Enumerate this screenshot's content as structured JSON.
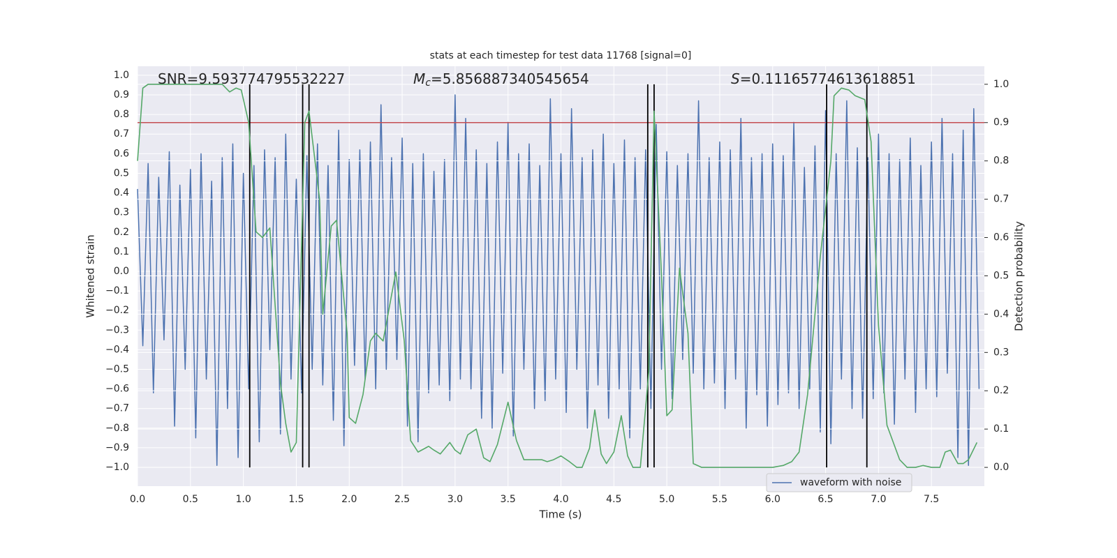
{
  "chart_data": {
    "type": "line",
    "title": "stats at each timestep for test data 11768 [signal=0]",
    "xlabel": "Time (s)",
    "ylabel": "Whitened strain",
    "y2label": "Detection probability",
    "xlim": [
      0,
      8
    ],
    "ylim": [
      -1.096,
      1.046
    ],
    "y2lim": [
      -0.049,
      1.047
    ],
    "xticks": [
      {
        "value": 0,
        "label": "0.0"
      },
      0.5,
      {
        "value": 1,
        "label": "1.0"
      },
      1.5,
      {
        "value": 2,
        "label": "2.0"
      },
      2.5,
      {
        "value": 3,
        "label": "3.0"
      },
      3.5,
      {
        "value": 4,
        "label": "4.0"
      },
      4.5,
      {
        "value": 5,
        "label": "5.0"
      },
      5.5,
      {
        "value": 6,
        "label": "6.0"
      },
      6.5,
      {
        "value": 7,
        "label": "7.0"
      },
      7.5
    ],
    "yticks": [
      {
        "value": -1,
        "label": "−1.0"
      },
      {
        "value": -0.9,
        "label": "−0.9"
      },
      {
        "value": -0.8,
        "label": "−0.8"
      },
      {
        "value": -0.7,
        "label": "−0.7"
      },
      {
        "value": -0.6,
        "label": "−0.6"
      },
      {
        "value": -0.5,
        "label": "−0.5"
      },
      {
        "value": -0.4,
        "label": "−0.4"
      },
      {
        "value": -0.3,
        "label": "−0.3"
      },
      {
        "value": -0.2,
        "label": "−0.2"
      },
      {
        "value": -0.1,
        "label": "−0.1"
      },
      {
        "value": 0,
        "label": "0.0"
      },
      0.1,
      0.2,
      0.3,
      0.4,
      0.5,
      0.6,
      0.7,
      0.8,
      0.9,
      {
        "value": 1,
        "label": "1.0"
      }
    ],
    "y2ticks": [
      {
        "value": 0,
        "label": "0.0"
      },
      0.1,
      0.2,
      0.3,
      0.4,
      0.5,
      0.6,
      0.7,
      0.8,
      0.9,
      {
        "value": 1,
        "label": "1.0"
      }
    ],
    "grid": true,
    "legend": "lower right",
    "annotations": [
      {
        "text": "SNR=9.593774795532227"
      },
      {
        "symbol": "M",
        "subscript": "c",
        "text": "=5.856887340545654"
      },
      {
        "symbol": "S",
        "text": "=0.11165774613618851"
      }
    ],
    "series": [
      {
        "name": "waveform with noise",
        "color": "#4c72b0",
        "x": [
          0,
          0.05,
          0.1,
          0.15,
          0.2,
          0.25,
          0.3,
          0.35,
          0.4,
          0.45,
          0.5,
          0.55,
          0.6,
          0.65,
          0.7,
          0.75,
          0.8,
          0.85,
          0.9,
          0.95,
          1,
          1.05,
          1.1,
          1.15,
          1.2,
          1.25,
          1.3,
          1.35,
          1.4,
          1.45,
          1.5,
          1.55,
          1.6,
          1.65,
          1.7,
          1.75,
          1.8,
          1.85,
          1.9,
          1.95,
          2,
          2.05,
          2.1,
          2.15,
          2.2,
          2.25,
          2.3,
          2.35,
          2.4,
          2.45,
          2.5,
          2.55,
          2.6,
          2.65,
          2.7,
          2.75,
          2.8,
          2.85,
          2.9,
          2.95,
          3,
          3.05,
          3.1,
          3.15,
          3.2,
          3.25,
          3.3,
          3.35,
          3.4,
          3.45,
          3.5,
          3.55,
          3.6,
          3.65,
          3.7,
          3.75,
          3.8,
          3.85,
          3.9,
          3.95,
          4,
          4.05,
          4.1,
          4.15,
          4.2,
          4.25,
          4.3,
          4.35,
          4.4,
          4.45,
          4.5,
          4.55,
          4.6,
          4.65,
          4.7,
          4.75,
          4.8,
          4.85,
          4.9,
          4.95,
          5,
          5.05,
          5.1,
          5.15,
          5.2,
          5.25,
          5.3,
          5.35,
          5.4,
          5.45,
          5.5,
          5.55,
          5.6,
          5.65,
          5.7,
          5.75,
          5.8,
          5.85,
          5.9,
          5.95,
          6,
          6.05,
          6.1,
          6.15,
          6.2,
          6.25,
          6.3,
          6.35,
          6.4,
          6.45,
          6.5,
          6.55,
          6.6,
          6.65,
          6.7,
          6.75,
          6.8,
          6.85,
          6.9,
          6.95,
          7,
          7.05,
          7.1,
          7.15,
          7.2,
          7.25,
          7.3,
          7.35,
          7.4,
          7.45,
          7.5,
          7.55,
          7.6,
          7.65,
          7.7,
          7.75,
          7.8,
          7.85,
          7.9,
          7.95
        ],
        "values": [
          0.42,
          -0.38,
          0.55,
          -0.62,
          0.48,
          -0.35,
          0.61,
          -0.79,
          0.44,
          -0.5,
          0.52,
          -0.85,
          0.6,
          -0.55,
          0.46,
          -0.99,
          0.58,
          -0.7,
          0.65,
          -0.95,
          0.5,
          -0.6,
          0.54,
          -0.87,
          0.62,
          -0.4,
          0.58,
          -0.83,
          0.7,
          -0.55,
          0.47,
          -0.62,
          0.59,
          -0.5,
          0.65,
          -0.58,
          0.54,
          -0.76,
          0.72,
          -0.89,
          0.57,
          -0.48,
          0.62,
          -0.55,
          0.66,
          -0.6,
          0.85,
          -0.5,
          0.58,
          -0.45,
          0.68,
          -0.79,
          0.55,
          -0.87,
          0.6,
          -0.62,
          0.51,
          -0.58,
          0.57,
          -0.66,
          0.9,
          -0.55,
          0.78,
          -0.6,
          0.62,
          -0.75,
          0.55,
          -0.8,
          0.66,
          -0.52,
          0.76,
          -0.84,
          0.6,
          -0.5,
          0.65,
          -0.7,
          0.54,
          -0.66,
          0.88,
          -0.55,
          0.6,
          -0.72,
          0.83,
          -0.5,
          0.58,
          -0.8,
          0.62,
          -0.58,
          0.7,
          -0.75,
          0.55,
          -0.6,
          0.67,
          -0.85,
          0.58,
          -0.6,
          0.62,
          -0.7,
          0.75,
          -0.5,
          0.61,
          -0.65,
          0.54,
          -0.45,
          0.6,
          -0.52,
          0.87,
          -0.6,
          0.58,
          -0.57,
          0.66,
          -0.7,
          0.62,
          -0.55,
          0.78,
          -0.8,
          0.58,
          -0.63,
          0.6,
          -0.79,
          0.65,
          -0.68,
          0.59,
          -0.62,
          0.76,
          -0.7,
          0.53,
          -0.6,
          0.64,
          -0.82,
          0.82,
          -0.88,
          0.6,
          -0.55,
          0.87,
          -0.7,
          0.63,
          -0.75,
          0.58,
          -0.65,
          0.7,
          -0.62,
          0.6,
          -0.78,
          0.57,
          -0.55,
          0.68,
          -0.72,
          0.54,
          -0.6,
          0.66,
          -0.64,
          0.78,
          -0.52,
          0.6,
          -0.95,
          0.72,
          -0.99,
          0.83,
          -0.6
        ]
      },
      {
        "color": "#55a868",
        "axis": "y2",
        "x": [
          0,
          0.05,
          0.1,
          0.8,
          0.87,
          0.93,
          0.98,
          1.05,
          1.12,
          1.18,
          1.25,
          1.35,
          1.4,
          1.45,
          1.5,
          1.58,
          1.62,
          1.72,
          1.75,
          1.83,
          1.88,
          1.98,
          2.0,
          2.06,
          2.13,
          2.2,
          2.25,
          2.32,
          2.44,
          2.52,
          2.58,
          2.65,
          2.75,
          2.8,
          2.86,
          2.95,
          3.0,
          3.05,
          3.12,
          3.2,
          3.27,
          3.33,
          3.4,
          3.5,
          3.58,
          3.65,
          3.75,
          3.82,
          3.87,
          3.93,
          4.0,
          4.08,
          4.15,
          4.2,
          4.27,
          4.32,
          4.38,
          4.43,
          4.5,
          4.57,
          4.63,
          4.68,
          4.75,
          4.83,
          4.88,
          4.95,
          5.0,
          5.05,
          5.12,
          5.2,
          5.25,
          5.33,
          5.5,
          6.0,
          6.1,
          6.18,
          6.25,
          6.33,
          6.45,
          6.55,
          6.58,
          6.65,
          6.72,
          6.78,
          6.87,
          6.93,
          7.0,
          7.08,
          7.2,
          7.27,
          7.35,
          7.42,
          7.5,
          7.58,
          7.63,
          7.68,
          7.75,
          7.8,
          7.85,
          7.93
        ],
        "values": [
          0.8,
          0.99,
          1.0,
          1.0,
          0.98,
          0.99,
          0.985,
          0.9,
          0.615,
          0.6,
          0.625,
          0.22,
          0.115,
          0.04,
          0.065,
          0.9,
          0.93,
          0.7,
          0.4,
          0.63,
          0.645,
          0.35,
          0.13,
          0.115,
          0.19,
          0.33,
          0.35,
          0.33,
          0.51,
          0.33,
          0.07,
          0.04,
          0.055,
          0.045,
          0.035,
          0.065,
          0.045,
          0.035,
          0.085,
          0.1,
          0.025,
          0.015,
          0.06,
          0.17,
          0.07,
          0.02,
          0.02,
          0.02,
          0.015,
          0.02,
          0.03,
          0.015,
          0.0,
          0.0,
          0.05,
          0.15,
          0.035,
          0.01,
          0.04,
          0.135,
          0.03,
          0.0,
          0.0,
          0.25,
          0.93,
          0.5,
          0.135,
          0.15,
          0.52,
          0.35,
          0.01,
          0.0,
          0.0,
          0.0,
          0.005,
          0.015,
          0.04,
          0.19,
          0.55,
          0.8,
          0.97,
          0.99,
          0.985,
          0.97,
          0.96,
          0.85,
          0.37,
          0.11,
          0.02,
          0.0,
          0.0,
          0.005,
          0.0,
          0.0,
          0.04,
          0.045,
          0.01,
          0.01,
          0.02,
          0.065
        ]
      }
    ],
    "threshold": {
      "value": 0.9,
      "color": "#c44e52",
      "axis": "y2"
    },
    "vlines": {
      "x": [
        1.06,
        1.56,
        1.62,
        4.82,
        4.88,
        6.51,
        6.89
      ],
      "range": [
        0,
        1
      ],
      "color": "#000000",
      "axis": "y2"
    }
  }
}
